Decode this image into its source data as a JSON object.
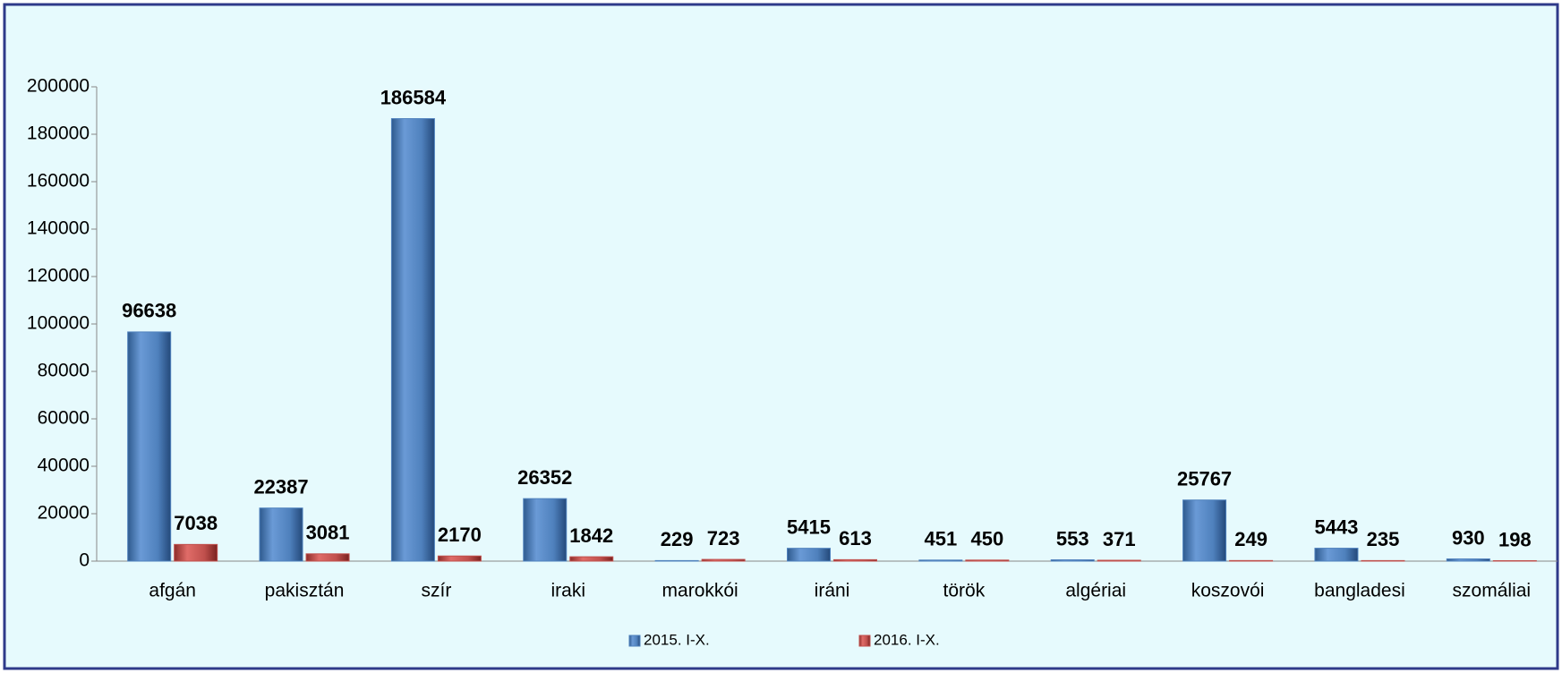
{
  "chart_data": {
    "type": "bar",
    "categories": [
      "afgán",
      "pakisztán",
      "szír",
      "iraki",
      "marokkói",
      "iráni",
      "török",
      "algériai",
      "koszovói",
      "bangladesi",
      "szomáliai"
    ],
    "series": [
      {
        "name": "2015. I-X.",
        "color": "#4f81bd",
        "values": [
          96638,
          22387,
          186584,
          26352,
          229,
          5415,
          451,
          553,
          25767,
          5443,
          930
        ]
      },
      {
        "name": "2016. I-X.",
        "color": "#c0504d",
        "values": [
          7038,
          3081,
          2170,
          1842,
          723,
          613,
          450,
          371,
          249,
          235,
          198
        ]
      }
    ],
    "ylim": [
      0,
      200000
    ],
    "yticks": [
      0,
      20000,
      40000,
      60000,
      80000,
      100000,
      120000,
      140000,
      160000,
      180000,
      200000
    ],
    "legend": "bottom"
  }
}
